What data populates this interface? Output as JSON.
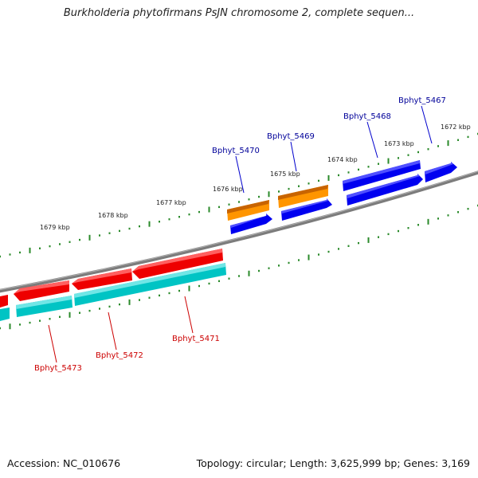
{
  "title": "Burkholderia phytofirmans PsJN chromosome 2, complete sequen...",
  "footer": {
    "accession": "Accession: NC_010676",
    "topology": "Topology: circular; Length: 3,625,999 bp; Genes: 3,169"
  },
  "colors": {
    "backbone": "#808080",
    "tick": "#2a8a2a",
    "forward_gene": "#0000ee",
    "forward_cds": "#ff8c00",
    "reverse_gene": "#ee0000",
    "reverse_cds": "#00c8c8",
    "forward_label": "#000099",
    "reverse_label": "#cc0000"
  },
  "ticks": [
    "1679 kbp",
    "1678 kbp",
    "1677 kbp",
    "1676 kbp",
    "1675 kbp",
    "1674 kbp",
    "1673 kbp",
    "1672 kbp"
  ],
  "forward_genes": [
    "Bphyt_5470",
    "Bphyt_5469",
    "Bphyt_5468",
    "Bphyt_5467"
  ],
  "reverse_genes": [
    "Bphyt_5473",
    "Bphyt_5472",
    "Bphyt_5471"
  ]
}
